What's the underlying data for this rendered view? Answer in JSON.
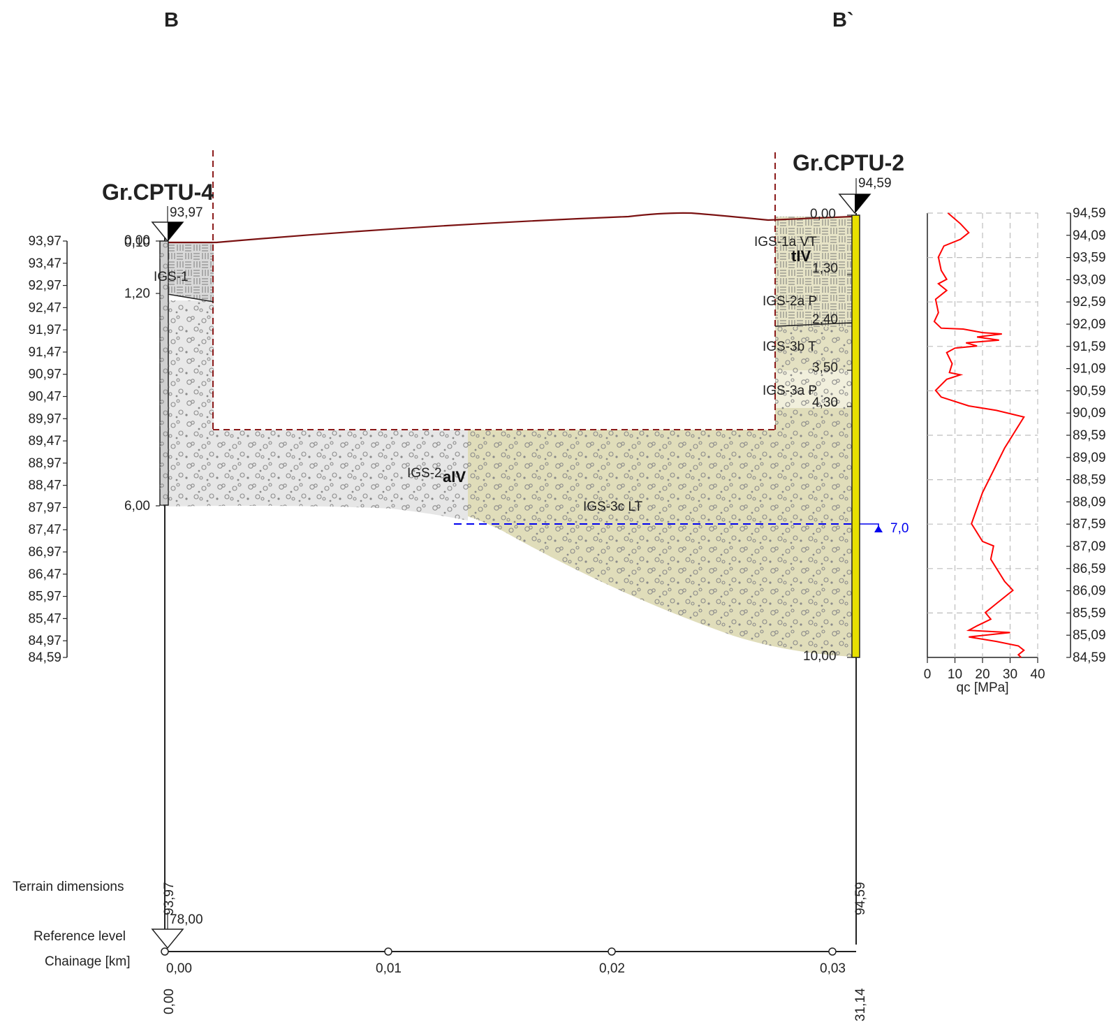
{
  "section": {
    "start_label": "B",
    "end_label": "B`"
  },
  "boreholes": [
    {
      "name": "Gr.CPTU-4",
      "top_elevation": "93,97",
      "top_depth": "0,00",
      "top_depth_overlap": "0,10",
      "layer_depths": [
        "1,20",
        "6,00"
      ],
      "layer_codes": [
        "IGS-1"
      ],
      "terrain_dimension": "93,97",
      "chainage": "0,00"
    },
    {
      "name": "Gr.CPTU-2",
      "top_elevation": "94,59",
      "top_depth": "0,00",
      "layer_depths": [
        "1,30",
        "2,40",
        "3,50",
        "4,30",
        "10,00"
      ],
      "layer_codes": [
        "IGS-1a VT",
        "IGS-2a P",
        "IGS-3b T",
        "IGS-3a P"
      ],
      "terrain_dimension": "94,59",
      "chainage": "31,14"
    }
  ],
  "units": {
    "tiv": "tIV",
    "aiv": "aIV",
    "igs2": "IGS-2",
    "igs3c": "IGS-3c LT"
  },
  "groundwater": {
    "depth": "7,0"
  },
  "left_axis": {
    "ticks": [
      "93,97",
      "93,47",
      "92,97",
      "92,47",
      "91,97",
      "91,47",
      "90,97",
      "90,47",
      "89,97",
      "89,47",
      "88,97",
      "88,47",
      "87,97",
      "87,47",
      "86,97",
      "86,47",
      "85,97",
      "85,47",
      "84,97",
      "84,59"
    ]
  },
  "right_axis": {
    "ticks": [
      "94,59",
      "94,09",
      "93,59",
      "93,09",
      "92,59",
      "92,09",
      "91,59",
      "91,09",
      "90,59",
      "90,09",
      "89,59",
      "89,09",
      "88,59",
      "88,09",
      "87,59",
      "87,09",
      "86,59",
      "86,09",
      "85,59",
      "85,09",
      "84,59"
    ]
  },
  "bottom": {
    "terrain_label": "Terrain dimensions",
    "reference_label": "Reference level",
    "reference_value": "78,00",
    "chainage_label": "Chainage [km]",
    "chainage_ticks": [
      "0,00",
      "0,01",
      "0,02",
      "0,03"
    ]
  },
  "chart_data": {
    "type": "line",
    "xlabel": "qc [MPa]",
    "ylabel": "",
    "xlim": [
      0,
      40
    ],
    "x_ticks": [
      "0",
      "10",
      "20",
      "30",
      "40"
    ],
    "ylim": [
      84.59,
      94.59
    ],
    "series": [
      {
        "color": "#ff0000",
        "points": [
          [
            7.5,
            94.59
          ],
          [
            12,
            94.35
          ],
          [
            15,
            94.15
          ],
          [
            12,
            94.0
          ],
          [
            6,
            93.85
          ],
          [
            4,
            93.6
          ],
          [
            5,
            93.3
          ],
          [
            7,
            93.1
          ],
          [
            4,
            93.0
          ],
          [
            7,
            92.85
          ],
          [
            3,
            92.65
          ],
          [
            4,
            92.35
          ],
          [
            2.5,
            92.15
          ],
          [
            5,
            92.0
          ],
          [
            13,
            91.98
          ],
          [
            20,
            91.9
          ],
          [
            27,
            91.87
          ],
          [
            18,
            91.8
          ],
          [
            26,
            91.73
          ],
          [
            14,
            91.67
          ],
          [
            18,
            91.6
          ],
          [
            10,
            91.55
          ],
          [
            7,
            91.45
          ],
          [
            9,
            91.2
          ],
          [
            8,
            91.0
          ],
          [
            12,
            90.95
          ],
          [
            7,
            90.85
          ],
          [
            3,
            90.6
          ],
          [
            5,
            90.45
          ],
          [
            15,
            90.25
          ],
          [
            25,
            90.15
          ],
          [
            35,
            90.0
          ],
          [
            28,
            89.3
          ],
          [
            20,
            88.3
          ],
          [
            16,
            87.6
          ],
          [
            20,
            87.2
          ],
          [
            24,
            87.1
          ],
          [
            23,
            86.8
          ],
          [
            28,
            86.3
          ],
          [
            31,
            86.1
          ],
          [
            25,
            85.8
          ],
          [
            21,
            85.6
          ],
          [
            23,
            85.45
          ],
          [
            18,
            85.3
          ],
          [
            15,
            85.2
          ],
          [
            30,
            85.15
          ],
          [
            15,
            85.05
          ],
          [
            25,
            84.95
          ],
          [
            33,
            84.85
          ],
          [
            35,
            84.75
          ],
          [
            33,
            84.65
          ],
          [
            34,
            84.59
          ]
        ]
      }
    ]
  }
}
